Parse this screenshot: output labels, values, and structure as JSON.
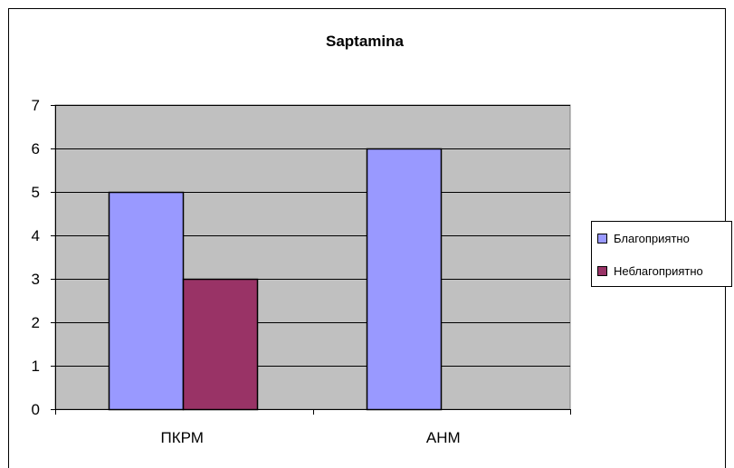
{
  "chart_data": {
    "type": "bar",
    "title": "Saptamina",
    "xlabel": "",
    "ylabel": "",
    "categories": [
      "ПКРМ",
      "АНМ"
    ],
    "series": [
      {
        "name": "Благоприятно",
        "values": [
          5,
          6
        ],
        "color": "#9999ff"
      },
      {
        "name": "Неблагоприятно",
        "values": [
          3,
          0
        ],
        "color": "#993366"
      }
    ],
    "ylim": [
      0,
      7
    ],
    "yticks": [
      "0",
      "1",
      "2",
      "3",
      "4",
      "5",
      "6",
      "7"
    ],
    "grid": true,
    "plot_background": "#c0c0c0",
    "legend_position": "right"
  }
}
